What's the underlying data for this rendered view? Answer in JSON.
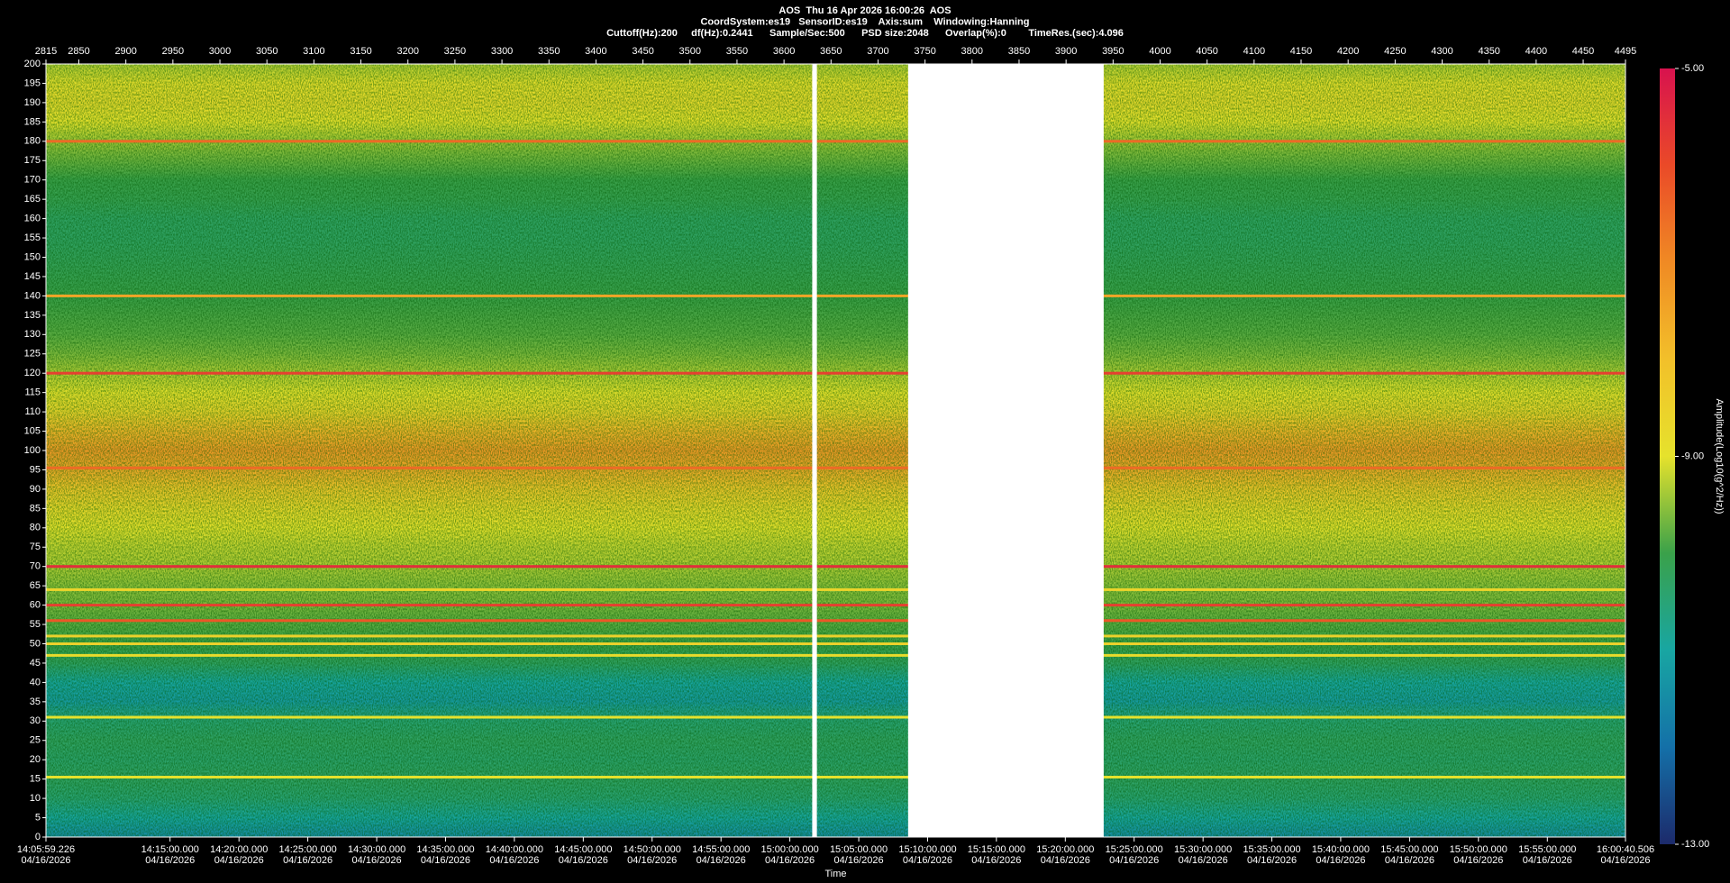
{
  "chart_data": {
    "type": "spectrogram",
    "title_lines": [
      "AOS  Thu 16 Apr 2026 16:00:26  AOS",
      "CoordSystem:es19   SensorID:es19    Axis:sum    Windowing:Hanning",
      "Cuttoff(Hz):200     df(Hz):0.2441      Sample/Sec:500      PSD size:2048      Overlap(%):0        TimeRes.(sec):4.096"
    ],
    "x_label": "Time",
    "colorbar_label": "Amplitude(Log10(g^2/Hz))",
    "xlim": [
      2815,
      4495
    ],
    "xticks": [
      2815,
      2850,
      2900,
      2950,
      3000,
      3050,
      3100,
      3150,
      3200,
      3250,
      3300,
      3350,
      3400,
      3450,
      3500,
      3550,
      3600,
      3650,
      3700,
      3750,
      3800,
      3850,
      3900,
      3950,
      4000,
      4050,
      4100,
      4150,
      4200,
      4250,
      4300,
      4350,
      4400,
      4450,
      4495
    ],
    "time_ticks": [
      {
        "value": 2815,
        "label": "14:05:59.226",
        "date": "04/16/2026"
      },
      {
        "value": 2947.0,
        "label": "14:15:00.000",
        "date": "04/16/2026"
      },
      {
        "value": 3020.3,
        "label": "14:20:00.000",
        "date": "04/16/2026"
      },
      {
        "value": 3093.5,
        "label": "14:25:00.000",
        "date": "04/16/2026"
      },
      {
        "value": 3166.8,
        "label": "14:30:00.000",
        "date": "04/16/2026"
      },
      {
        "value": 3240.0,
        "label": "14:35:00.000",
        "date": "04/16/2026"
      },
      {
        "value": 3313.2,
        "label": "14:40:00.000",
        "date": "04/16/2026"
      },
      {
        "value": 3386.5,
        "label": "14:45:00.000",
        "date": "04/16/2026"
      },
      {
        "value": 3459.7,
        "label": "14:50:00.000",
        "date": "04/16/2026"
      },
      {
        "value": 3533.0,
        "label": "14:55:00.000",
        "date": "04/16/2026"
      },
      {
        "value": 3606.2,
        "label": "15:00:00.000",
        "date": "04/16/2026"
      },
      {
        "value": 3679.5,
        "label": "15:05:00.000",
        "date": "04/16/2026"
      },
      {
        "value": 3752.7,
        "label": "15:10:00.000",
        "date": "04/16/2026"
      },
      {
        "value": 3825.9,
        "label": "15:15:00.000",
        "date": "04/16/2026"
      },
      {
        "value": 3899.2,
        "label": "15:20:00.000",
        "date": "04/16/2026"
      },
      {
        "value": 3972.4,
        "label": "15:25:00.000",
        "date": "04/16/2026"
      },
      {
        "value": 4045.7,
        "label": "15:30:00.000",
        "date": "04/16/2026"
      },
      {
        "value": 4118.9,
        "label": "15:35:00.000",
        "date": "04/16/2026"
      },
      {
        "value": 4192.1,
        "label": "15:40:00.000",
        "date": "04/16/2026"
      },
      {
        "value": 4265.4,
        "label": "15:45:00.000",
        "date": "04/16/2026"
      },
      {
        "value": 4338.6,
        "label": "15:50:00.000",
        "date": "04/16/2026"
      },
      {
        "value": 4411.9,
        "label": "15:55:00.000",
        "date": "04/16/2026"
      },
      {
        "value": 4495,
        "label": "16:00:40.506",
        "date": "04/16/2026"
      }
    ],
    "ylim": [
      0,
      200
    ],
    "yticks": [
      0,
      5,
      10,
      15,
      20,
      25,
      30,
      35,
      40,
      45,
      50,
      55,
      60,
      65,
      70,
      75,
      80,
      85,
      90,
      95,
      100,
      105,
      110,
      115,
      120,
      125,
      130,
      135,
      140,
      145,
      150,
      155,
      160,
      165,
      170,
      175,
      180,
      185,
      190,
      195,
      200
    ],
    "clim": [
      -13,
      -5
    ],
    "cticks": [
      {
        "value": -5,
        "label": "-5.00"
      },
      {
        "value": -9,
        "label": "-9.00"
      },
      {
        "value": -13,
        "label": "-13.00"
      }
    ],
    "colors": [
      "#1c2a6b",
      "#1470a8",
      "#18a6a2",
      "#3aa14a",
      "#e6e22c",
      "#f2c02a",
      "#f08a24",
      "#ea4a28",
      "#d8124e"
    ],
    "background": {
      "freq": [
        0,
        5,
        10,
        15,
        20,
        25,
        30,
        35,
        40,
        45,
        50,
        55,
        60,
        65,
        70,
        75,
        80,
        85,
        90,
        95,
        100,
        105,
        110,
        115,
        120,
        125,
        130,
        135,
        140,
        145,
        150,
        155,
        160,
        165,
        170,
        175,
        180,
        185,
        190,
        195,
        200
      ],
      "amplitude": [
        -11.5,
        -11,
        -10.5,
        -10.3,
        -10.4,
        -10.3,
        -10.5,
        -11.2,
        -11,
        -10.3,
        -10,
        -9.8,
        -9.6,
        -9.5,
        -9.3,
        -9.2,
        -9,
        -8.7,
        -8.2,
        -7.6,
        -7.3,
        -7.8,
        -8.6,
        -9,
        -9.3,
        -9.6,
        -9.8,
        -9.9,
        -10,
        -10.1,
        -10.2,
        -10.3,
        -10.3,
        -10.1,
        -10,
        -9.7,
        -9.4,
        -9,
        -8.8,
        -8.9,
        -9.3
      ]
    },
    "lines": [
      {
        "freq": 180,
        "amplitude": -6.5
      },
      {
        "freq": 140,
        "amplitude": -7.5
      },
      {
        "freq": 120,
        "amplitude": -5.8
      },
      {
        "freq": 95.5,
        "amplitude": -6.5
      },
      {
        "freq": 70,
        "amplitude": -5.5
      },
      {
        "freq": 64,
        "amplitude": -8.6
      },
      {
        "freq": 60,
        "amplitude": -5.8
      },
      {
        "freq": 56,
        "amplitude": -6.2
      },
      {
        "freq": 52,
        "amplitude": -8.5
      },
      {
        "freq": 50,
        "amplitude": -8.5
      },
      {
        "freq": 47,
        "amplitude": -8.8
      },
      {
        "freq": 31,
        "amplitude": -9
      },
      {
        "freq": 15.5,
        "amplitude": -9
      }
    ],
    "gaps": [
      [
        3630,
        3635
      ],
      [
        3732,
        3940
      ]
    ]
  }
}
